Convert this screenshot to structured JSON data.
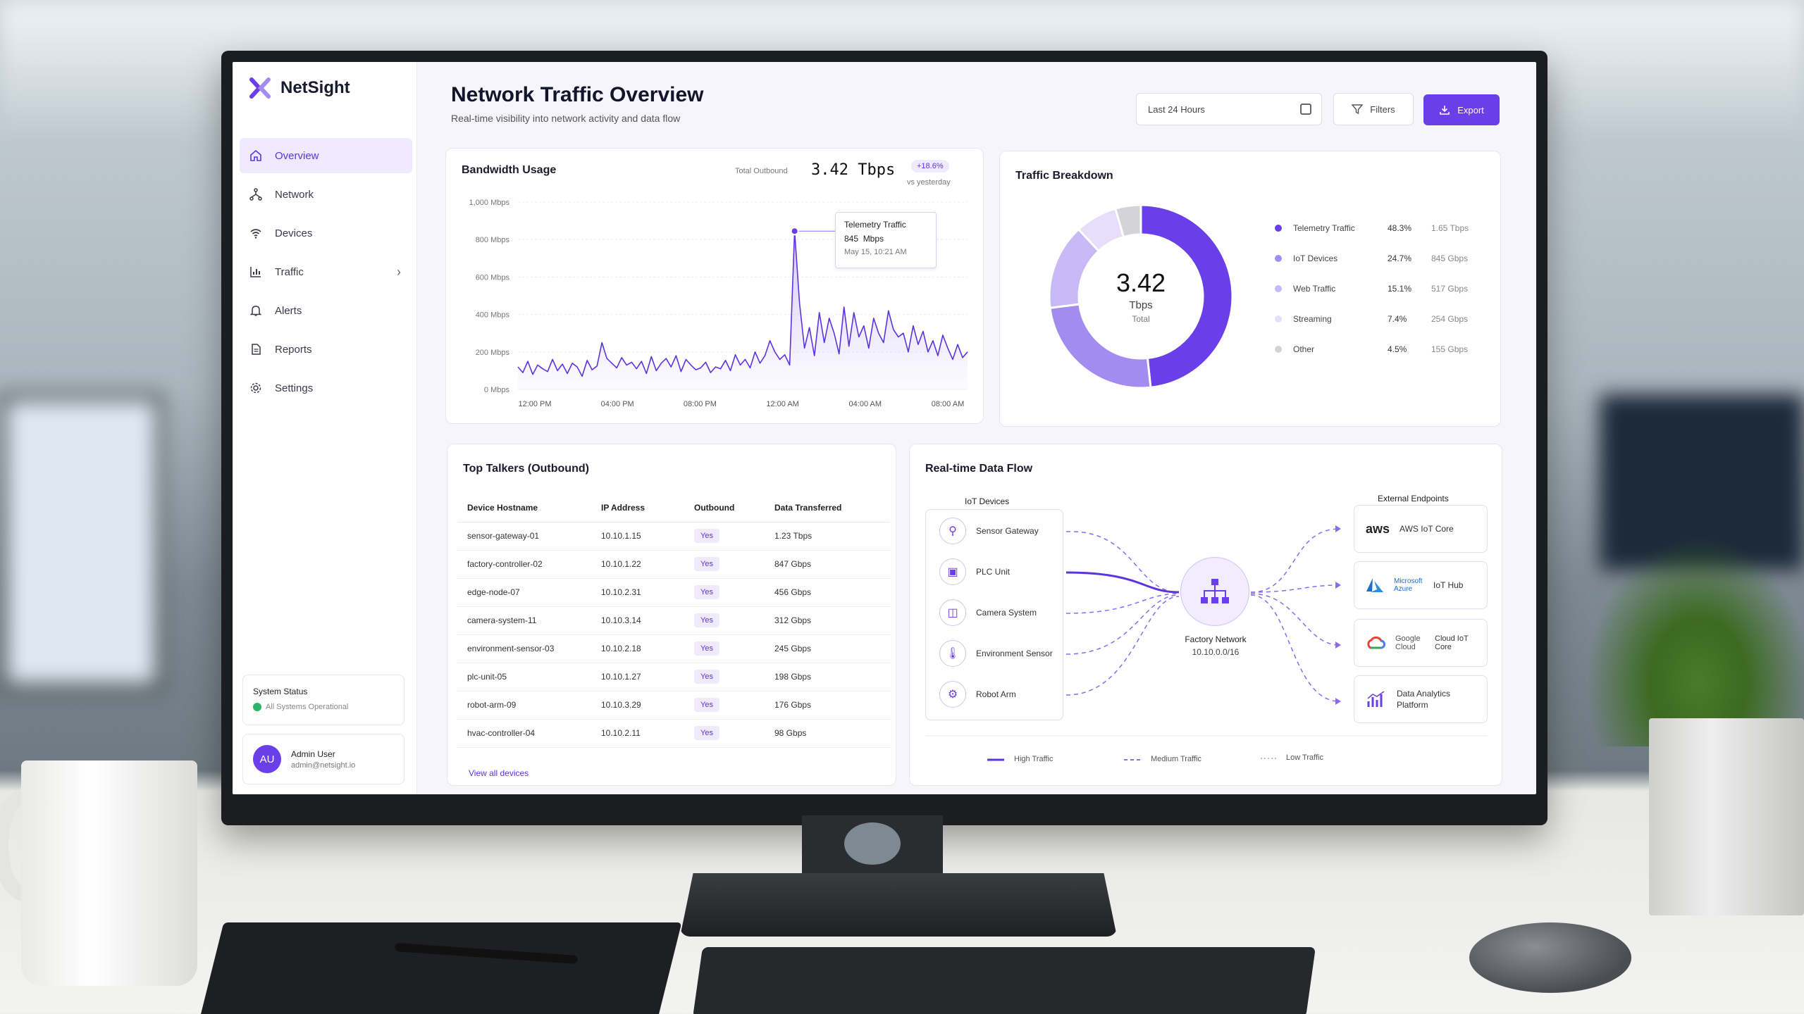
{
  "app": {
    "name": "NetSight"
  },
  "sidebar": {
    "items": [
      {
        "label": "Overview"
      },
      {
        "label": "Network"
      },
      {
        "label": "Devices"
      },
      {
        "label": "Traffic"
      },
      {
        "label": "Alerts"
      },
      {
        "label": "Reports"
      },
      {
        "label": "Settings"
      }
    ],
    "status": {
      "title": "System Status",
      "text": "All Systems Operational"
    },
    "user": {
      "initials": "AU",
      "name": "Admin User",
      "email": "admin@netsight.io"
    }
  },
  "header": {
    "title": "Network Traffic Overview",
    "subtitle": "Real-time visibility into network activity and data flow",
    "date_range": "Last 24 Hours",
    "filters_label": "Filters",
    "export_label": "Export"
  },
  "bandwidth": {
    "title": "Bandwidth Usage",
    "total_label": "Total Outbound",
    "total_value": "3.42 Tbps",
    "change": "+18.6%",
    "change_label": "vs yesterday",
    "y_ticks": [
      "1,000 Mbps",
      "800 Mbps",
      "600 Mbps",
      "400 Mbps",
      "200 Mbps",
      "0 Mbps"
    ],
    "x_ticks": [
      "12:00 PM",
      "04:00 PM",
      "08:00 PM",
      "12:00 AM",
      "04:00 AM",
      "08:00 AM"
    ],
    "tooltip": {
      "title": "Telemetry Traffic",
      "value": "845  Mbps",
      "time": "May 15, 10:21 AM"
    }
  },
  "breakdown": {
    "title": "Traffic Breakdown",
    "center_value": "3.42",
    "center_unit": "Tbps",
    "center_label": "Total",
    "items": [
      {
        "label": "Telemetry Traffic",
        "pct": "48.3%",
        "value": "1.65 Tbps",
        "color": "#6a3ee8"
      },
      {
        "label": "IoT Devices",
        "pct": "24.7%",
        "value": "845 Gbps",
        "color": "#a48bf0"
      },
      {
        "label": "Web Traffic",
        "pct": "15.1%",
        "value": "517 Gbps",
        "color": "#c9b9f6"
      },
      {
        "label": "Streaming",
        "pct": "7.4%",
        "value": "254 Gbps",
        "color": "#e6defb"
      },
      {
        "label": "Other",
        "pct": "4.5%",
        "value": "155 Gbps",
        "color": "#d3d3d8"
      }
    ]
  },
  "top_talkers": {
    "title": "Top Talkers (Outbound)",
    "columns": [
      "Device Hostname",
      "IP Address",
      "Outbound",
      "Data Transferred"
    ],
    "rows": [
      [
        "sensor-gateway-01",
        "10.10.1.15",
        "Yes",
        "1.23 Tbps"
      ],
      [
        "factory-controller-02",
        "10.10.1.22",
        "Yes",
        "847 Gbps"
      ],
      [
        "edge-node-07",
        "10.10.2.31",
        "Yes",
        "456 Gbps"
      ],
      [
        "camera-system-11",
        "10.10.3.14",
        "Yes",
        "312 Gbps"
      ],
      [
        "environment-sensor-03",
        "10.10.2.18",
        "Yes",
        "245 Gbps"
      ],
      [
        "plc-unit-05",
        "10.10.1.27",
        "Yes",
        "198 Gbps"
      ],
      [
        "robot-arm-09",
        "10.10.3.29",
        "Yes",
        "176 Gbps"
      ],
      [
        "hvac-controller-04",
        "10.10.2.11",
        "Yes",
        "98 Gbps"
      ]
    ],
    "view_all": "View all devices"
  },
  "dataflow": {
    "title": "Real-time Data Flow",
    "iot_heading": "IoT Devices",
    "ext_heading": "External Endpoints",
    "devices": [
      "Sensor Gateway",
      "PLC Unit",
      "Camera System",
      "Environment Sensor",
      "Robot Arm"
    ],
    "hub": {
      "name": "Factory Network",
      "cidr": "10.10.0.0/16"
    },
    "endpoints": [
      {
        "brand": "aws",
        "label": "AWS IoT Core"
      },
      {
        "brand": "Microsoft Azure",
        "label": "IoT Hub"
      },
      {
        "brand": "Google Cloud",
        "label": "Cloud IoT Core"
      },
      {
        "brand": "",
        "label": "Data Analytics Platform"
      }
    ],
    "legend": [
      "High Traffic",
      "Medium Traffic",
      "Low Traffic"
    ]
  },
  "chart_data": {
    "type": "line",
    "title": "Bandwidth Usage",
    "ylabel": "",
    "xlabel": "",
    "ylim": [
      0,
      1000
    ],
    "x_ticks": [
      "12:00 PM",
      "04:00 PM",
      "08:00 PM",
      "12:00 AM",
      "04:00 AM",
      "08:00 AM"
    ],
    "series": [
      {
        "name": "",
        "values": [
          120,
          90,
          150,
          80,
          130,
          110,
          95,
          160,
          100,
          135,
          85,
          140,
          120,
          70,
          155,
          105,
          125,
          250,
          165,
          140,
          115,
          170,
          130,
          145,
          110,
          150,
          85,
          175,
          100,
          140,
          165,
          120,
          180,
          95,
          160,
          130,
          105,
          115,
          145,
          90,
          120,
          110,
          155,
          100,
          185,
          130,
          160,
          115,
          200,
          140,
          180,
          260,
          200,
          160,
          185,
          130,
          845,
          460,
          220,
          330,
          180,
          410,
          250,
          380,
          300,
          190,
          440,
          230,
          410,
          280,
          340,
          220,
          380,
          300,
          250,
          420,
          320,
          280,
          300,
          200,
          340,
          240,
          310,
          200,
          260,
          180,
          290,
          220,
          160,
          240,
          170,
          200
        ]
      }
    ]
  }
}
